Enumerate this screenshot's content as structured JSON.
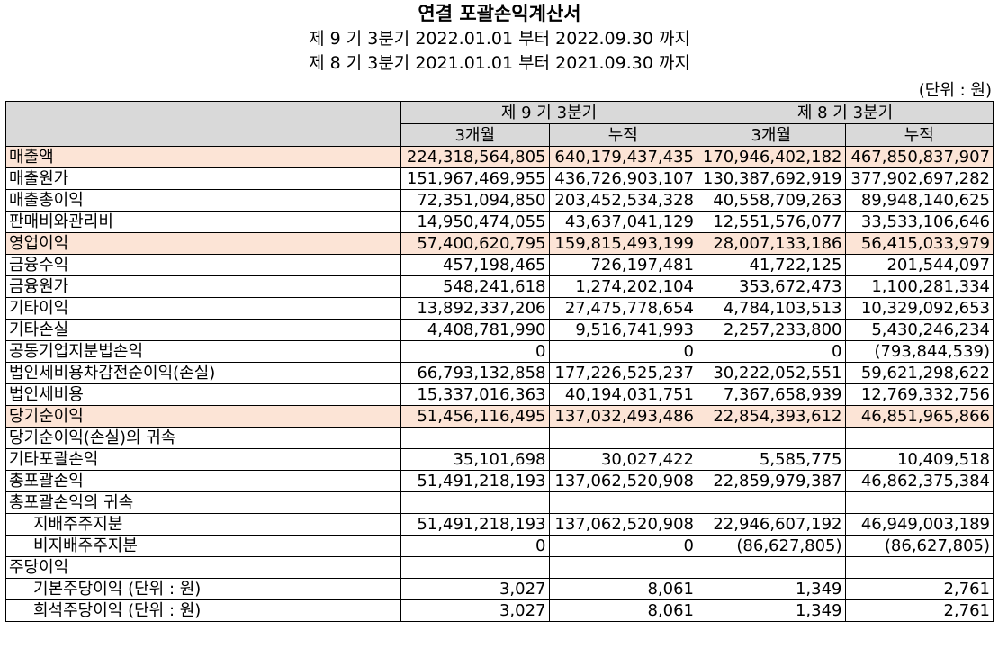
{
  "header": {
    "title": "연결 포괄손익계산서",
    "periods": [
      "제 9 기 3분기 2022.01.01 부터 2022.09.30 까지",
      "제 8 기 3분기 2021.01.01 부터 2021.09.30 까지"
    ],
    "unit": "(단위 : 원)"
  },
  "table": {
    "groups": [
      "제 9 기 3분기",
      "제 8 기 3분기"
    ],
    "subheaders": [
      "3개월",
      "누적",
      "3개월",
      "누적"
    ],
    "rows": [
      {
        "label": "매출액",
        "highlight": true,
        "values": [
          "224,318,564,805",
          "640,179,437,435",
          "170,946,402,182",
          "467,850,837,907"
        ]
      },
      {
        "label": "매출원가",
        "values": [
          "151,967,469,955",
          "436,726,903,107",
          "130,387,692,919",
          "377,902,697,282"
        ]
      },
      {
        "label": "매출총이익",
        "values": [
          "72,351,094,850",
          "203,452,534,328",
          "40,558,709,263",
          "89,948,140,625"
        ]
      },
      {
        "label": "판매비와관리비",
        "values": [
          "14,950,474,055",
          "43,637,041,129",
          "12,551,576,077",
          "33,533,106,646"
        ]
      },
      {
        "label": "영업이익",
        "highlight": true,
        "values": [
          "57,400,620,795",
          "159,815,493,199",
          "28,007,133,186",
          "56,415,033,979"
        ]
      },
      {
        "label": "금융수익",
        "values": [
          "457,198,465",
          "726,197,481",
          "41,722,125",
          "201,544,097"
        ]
      },
      {
        "label": "금융원가",
        "values": [
          "548,241,618",
          "1,274,202,104",
          "353,672,473",
          "1,100,281,334"
        ]
      },
      {
        "label": "기타이익",
        "values": [
          "13,892,337,206",
          "27,475,778,654",
          "4,784,103,513",
          "10,329,092,653"
        ]
      },
      {
        "label": "기타손실",
        "values": [
          "4,408,781,990",
          "9,516,741,993",
          "2,257,233,800",
          "5,430,246,234"
        ]
      },
      {
        "label": "공동기업지분법손익",
        "values": [
          "0",
          "0",
          "0",
          "(793,844,539)"
        ]
      },
      {
        "label": "법인세비용차감전순이익(손실)",
        "values": [
          "66,793,132,858",
          "177,226,525,237",
          "30,222,052,551",
          "59,621,298,622"
        ]
      },
      {
        "label": "법인세비용",
        "values": [
          "15,337,016,363",
          "40,194,031,751",
          "7,367,658,939",
          "12,769,332,756"
        ]
      },
      {
        "label": "당기순이익",
        "highlight": true,
        "values": [
          "51,456,116,495",
          "137,032,493,486",
          "22,854,393,612",
          "46,851,965,866"
        ]
      },
      {
        "label": "당기순이익(손실)의 귀속",
        "values": [
          null,
          null,
          null,
          null
        ]
      },
      {
        "label": "기타포괄손익",
        "values": [
          "35,101,698",
          "30,027,422",
          "5,585,775",
          "10,409,518"
        ]
      },
      {
        "label": "총포괄손익",
        "values": [
          "51,491,218,193",
          "137,062,520,908",
          "22,859,979,387",
          "46,862,375,384"
        ]
      },
      {
        "label": "총포괄손익의 귀속",
        "values": [
          null,
          null,
          null,
          null
        ]
      },
      {
        "label": "지배주주지분",
        "indent": true,
        "values": [
          "51,491,218,193",
          "137,062,520,908",
          "22,946,607,192",
          "46,949,003,189"
        ]
      },
      {
        "label": "비지배주주지분",
        "indent": true,
        "values": [
          "0",
          "0",
          "(86,627,805)",
          "(86,627,805)"
        ]
      },
      {
        "label": "주당이익",
        "values": [
          null,
          null,
          null,
          null
        ]
      },
      {
        "label": "기본주당이익 (단위 : 원)",
        "indent": true,
        "values": [
          "3,027",
          "8,061",
          "1,349",
          "2,761"
        ]
      },
      {
        "label": "희석주당이익 (단위 : 원)",
        "indent": true,
        "values": [
          "3,027",
          "8,061",
          "1,349",
          "2,761"
        ]
      }
    ]
  }
}
